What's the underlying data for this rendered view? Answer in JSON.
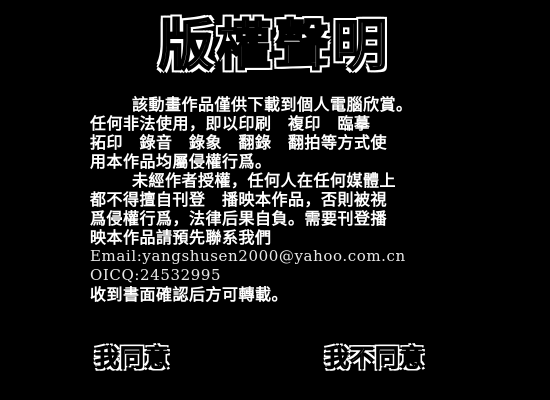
{
  "title": "版權聲明",
  "notice": {
    "lines": [
      "該動畫作品僅供下載到個人電腦欣賞。",
      "任何非法使用，即以印刷　複印　臨摹",
      "拓印　錄音　錄象　翻錄　翻拍等方式使",
      "用本作品均屬侵權行爲。",
      "未經作者授權，任何人在任何媒體上",
      "都不得擅自刊登　播映本作品，否則被視",
      "爲侵權行爲，法律后果自負。需要刊登播",
      "映本作品請預先聯系我們",
      "Email:yangshusen2000@yahoo.com.cn",
      "OICQ:24532995",
      "收到書面確認后方可轉載。"
    ]
  },
  "buttons": {
    "agree_label": "我同意",
    "disagree_label": "我不同意"
  },
  "colors": {
    "background": "#000000",
    "text": "#ffffff"
  }
}
